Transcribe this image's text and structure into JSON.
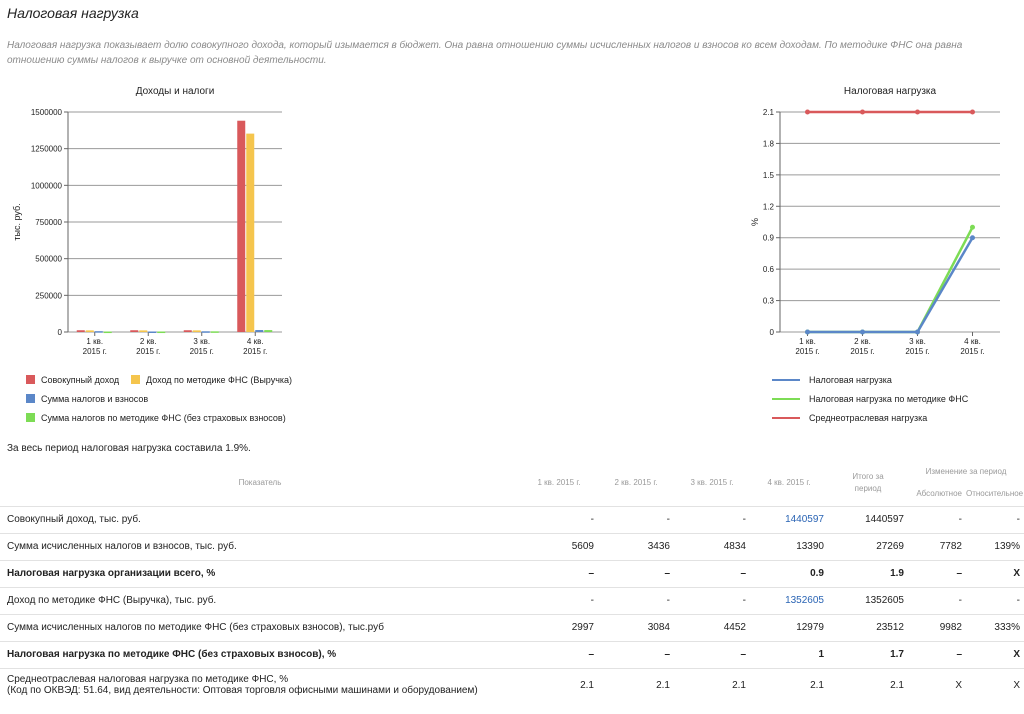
{
  "page": {
    "title": "Налоговая нагрузка",
    "description": "Налоговая нагрузка показывает долю совокупного дохода, который изымается в бюджет. Она равна отношению суммы исчисленных налогов и взносов ко всем доходам. По методике ФНС она равна отношению суммы налогов к выручке от основной деятельности.",
    "summary": "За весь период налоговая нагрузка составила 1.9%."
  },
  "colors": {
    "red": "#d9595b",
    "yellow": "#f5c54d",
    "blue": "#5b87c8",
    "green": "#7ddc55",
    "grid": "#999999",
    "text": "#222222"
  },
  "chart_data": [
    {
      "type": "bar",
      "title": "Доходы и налоги",
      "ylabel": "тыс. руб.",
      "categories": [
        [
          "1 кв.",
          "2015 г."
        ],
        [
          "2 кв.",
          "2015 г."
        ],
        [
          "3 кв.",
          "2015 г."
        ],
        [
          "4 кв.",
          "2015 г."
        ]
      ],
      "yticks": [
        "0",
        "250000",
        "500000",
        "750000",
        "1000000",
        "1250000",
        "1500000"
      ],
      "ylim": [
        0,
        1500000
      ],
      "grid": true,
      "series": [
        {
          "name": "Совокупный доход",
          "color": "#d9595b",
          "values": [
            12000,
            12000,
            12000,
            1440597
          ]
        },
        {
          "name": "Доход по методике ФНС (Выручка)",
          "color": "#f5c54d",
          "values": [
            11000,
            11000,
            11000,
            1352605
          ]
        },
        {
          "name": "Сумма налогов и взносов",
          "color": "#5b87c8",
          "values": [
            5609,
            3436,
            4834,
            13390
          ]
        },
        {
          "name": "Сумма налогов по методике ФНС (без страховых взносов)",
          "color": "#7ddc55",
          "values": [
            2997,
            3084,
            4452,
            12979
          ]
        }
      ]
    },
    {
      "type": "line",
      "title": "Налоговая нагрузка",
      "ylabel": "%",
      "categories": [
        [
          "1 кв.",
          "2015 г."
        ],
        [
          "2 кв.",
          "2015 г."
        ],
        [
          "3 кв.",
          "2015 г."
        ],
        [
          "4 кв.",
          "2015 г."
        ]
      ],
      "yticks": [
        "0",
        "0.3",
        "0.6",
        "0.9",
        "1.2",
        "1.5",
        "1.8",
        "2.1"
      ],
      "ylim": [
        0,
        2.1
      ],
      "grid": true,
      "series": [
        {
          "name": "Налоговая нагрузка",
          "color": "#5b87c8",
          "values": [
            0,
            0,
            0,
            0.9
          ]
        },
        {
          "name": "Налоговая нагрузка по методике ФНС",
          "color": "#7ddc55",
          "values": [
            0,
            0,
            0,
            1.0
          ]
        },
        {
          "name": "Среднеотраслевая нагрузка",
          "color": "#d9595b",
          "values": [
            2.1,
            2.1,
            2.1,
            2.1
          ]
        }
      ]
    }
  ],
  "table": {
    "headers": {
      "indicator": "Показатель",
      "q1": "1 кв. 2015 г.",
      "q2": "2 кв. 2015 г.",
      "q3": "3 кв. 2015 г.",
      "q4": "4 кв. 2015 г.",
      "total": "Итого за период",
      "change": "Изменение за период",
      "abs": "Абсолютное",
      "rel": "Относительное"
    },
    "rows": [
      {
        "label": "Совокупный доход, тыс. руб.",
        "bold": false,
        "q1": "-",
        "q2": "-",
        "q3": "-",
        "q4": "1440597",
        "q4_link": true,
        "total": "1440597",
        "abs": "-",
        "rel": "-"
      },
      {
        "label": "Сумма исчисленных налогов и взносов, тыс. руб.",
        "bold": false,
        "q1": "5609",
        "q2": "3436",
        "q3": "4834",
        "q4": "13390",
        "q4_link": false,
        "total": "27269",
        "abs": "7782",
        "rel": "139%"
      },
      {
        "label": "Налоговая нагрузка организации всего, %",
        "bold": true,
        "q1": "–",
        "q2": "–",
        "q3": "–",
        "q4": "0.9",
        "q4_link": false,
        "total": "1.9",
        "abs": "–",
        "rel": "X"
      },
      {
        "label": "Доход по методике ФНС (Выручка), тыс. руб.",
        "bold": false,
        "q1": "-",
        "q2": "-",
        "q3": "-",
        "q4": "1352605",
        "q4_link": true,
        "total": "1352605",
        "abs": "-",
        "rel": "-"
      },
      {
        "label": "Сумма исчисленных налогов по методике ФНС (без страховых взносов), тыс.руб",
        "bold": false,
        "q1": "2997",
        "q2": "3084",
        "q3": "4452",
        "q4": "12979",
        "q4_link": false,
        "total": "23512",
        "abs": "9982",
        "rel": "333%"
      },
      {
        "label": "Налоговая нагрузка по методике ФНС (без страховых взносов), %",
        "bold": true,
        "q1": "–",
        "q2": "–",
        "q3": "–",
        "q4": "1",
        "q4_link": false,
        "total": "1.7",
        "abs": "–",
        "rel": "X"
      },
      {
        "label": "Среднеотраслевая налоговая нагрузка по методике ФНС, %",
        "label2": "(Код по ОКВЭД: 51.64, вид деятельности: Оптовая торговля офисными машинами и оборудованием)",
        "bold": false,
        "q1": "2.1",
        "q2": "2.1",
        "q3": "2.1",
        "q4": "2.1",
        "q4_link": false,
        "total": "2.1",
        "abs": "X",
        "rel": "X"
      }
    ]
  }
}
